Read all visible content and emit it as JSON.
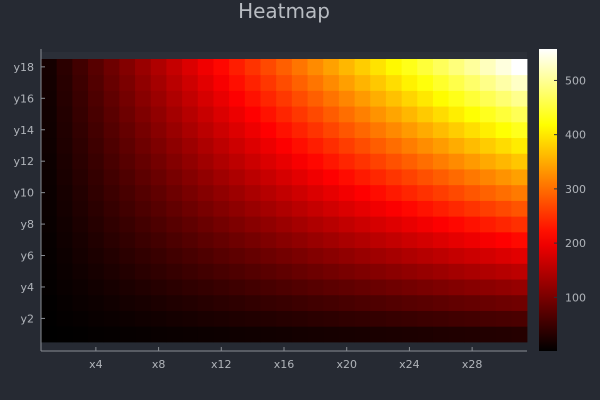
{
  "chart_data": {
    "type": "heatmap",
    "title": "Heatmap",
    "colormap": "hot",
    "x_tick_labels": [
      "x4",
      "x8",
      "x12",
      "x16",
      "x20",
      "x24",
      "x28"
    ],
    "x_tick_positions": [
      4,
      8,
      12,
      16,
      20,
      24,
      28
    ],
    "y_tick_labels": [
      "y2",
      "y4",
      "y6",
      "y8",
      "y10",
      "y12",
      "y14",
      "y16",
      "y18"
    ],
    "y_tick_positions": [
      2,
      4,
      6,
      8,
      10,
      12,
      14,
      16,
      18
    ],
    "x_count": 31,
    "y_count": 18,
    "x_range": [
      1,
      31
    ],
    "y_range": [
      1,
      18
    ],
    "z_formula": "z = x * y",
    "clim": [
      1,
      558
    ],
    "colorbar": {
      "ticks": [
        100,
        200,
        300,
        400,
        500
      ]
    },
    "grid": false,
    "colors": {
      "background": "#262a33",
      "plot_area": "#2b2f38"
    }
  }
}
